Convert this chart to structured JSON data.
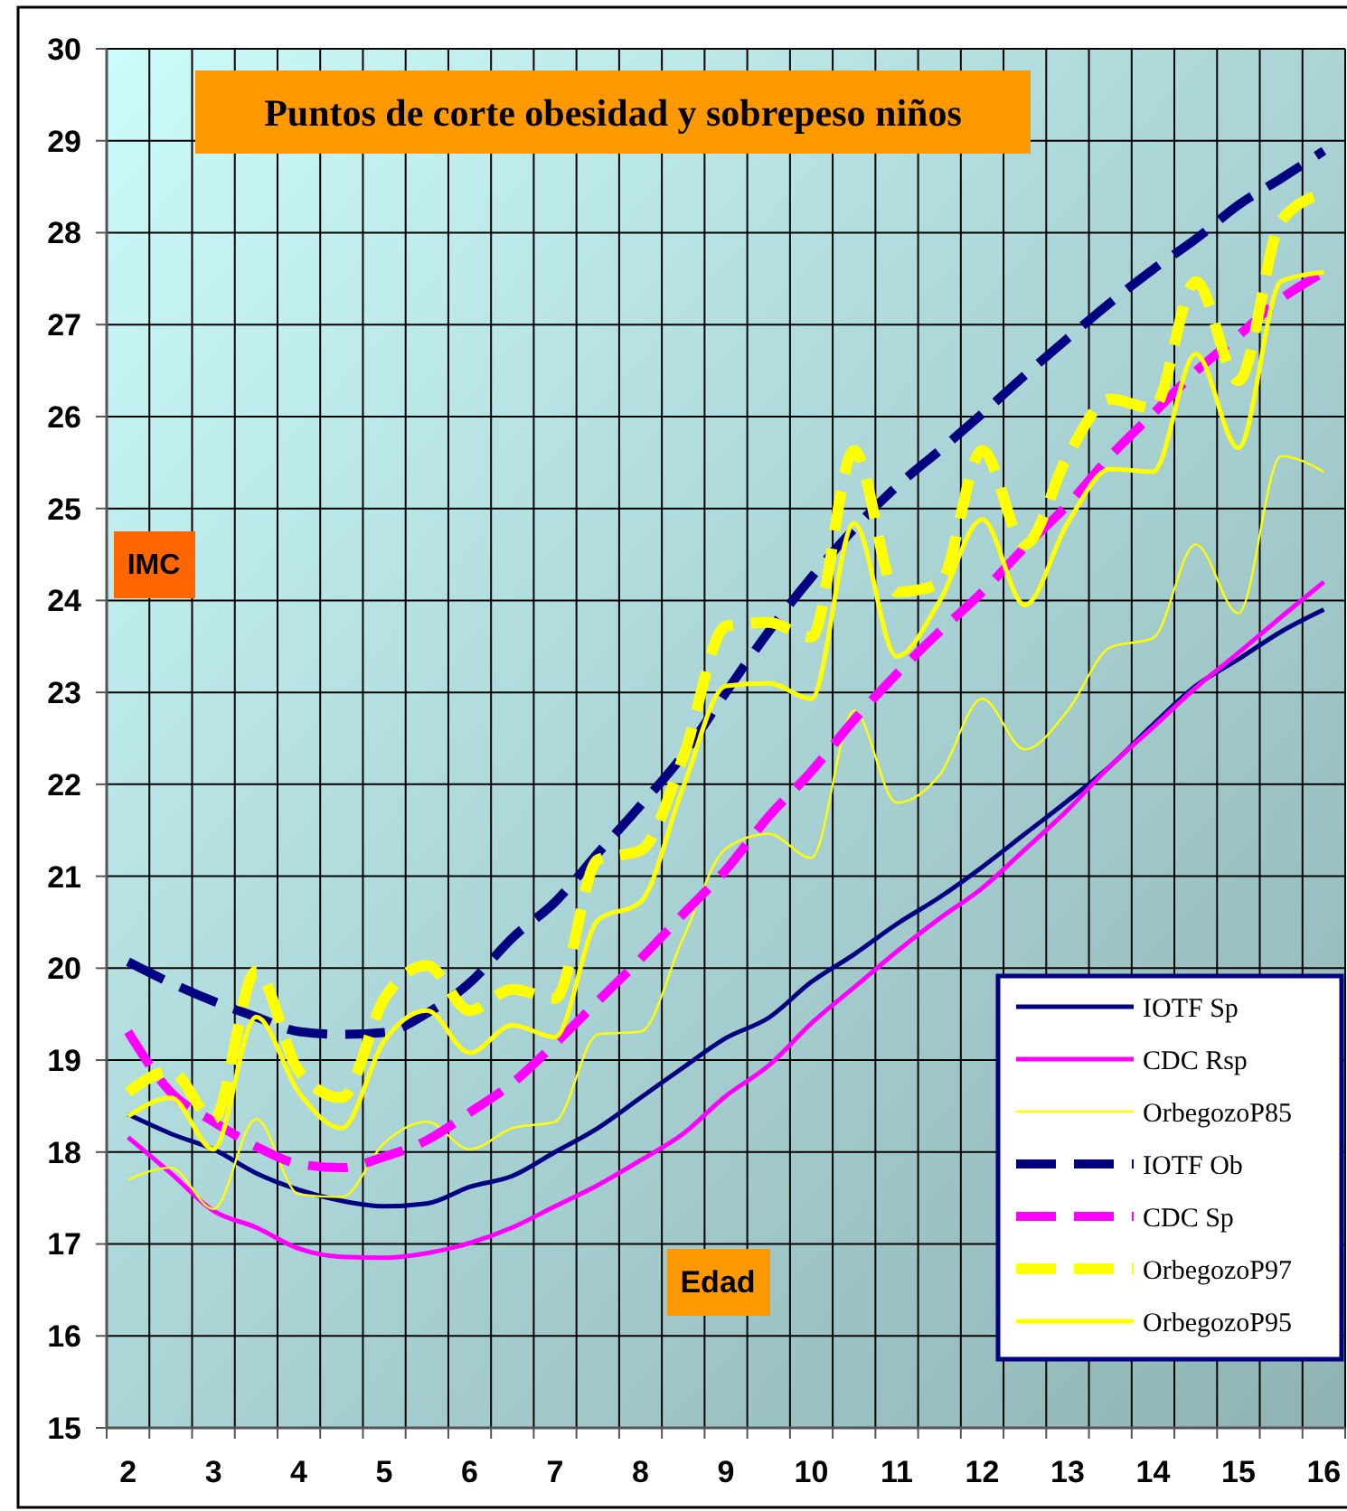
{
  "chart_data": {
    "type": "line",
    "title": "Puntos de corte obesidad y sobrepeso niños",
    "xlabel": "Edad",
    "ylabel": "IMC",
    "categories": [
      "2",
      null,
      "3",
      null,
      "4",
      null,
      "5",
      null,
      "6",
      null,
      "7",
      null,
      "8",
      null,
      "9",
      null,
      "10",
      null,
      "11",
      null,
      "12",
      null,
      "13",
      null,
      "14",
      null,
      "15",
      null,
      "16"
    ],
    "ylim": [
      15,
      30
    ],
    "yticks": [
      15,
      16,
      17,
      18,
      19,
      20,
      21,
      22,
      23,
      24,
      25,
      26,
      27,
      28,
      29,
      30
    ],
    "grid": true,
    "legend": "bottom right",
    "series": [
      {
        "name": "IOTF Sp",
        "color": "#000080",
        "line_style": "solid",
        "values": [
          18.41,
          18.2,
          18.03,
          17.77,
          17.59,
          17.47,
          17.41,
          17.44,
          17.62,
          17.74,
          18.0,
          18.26,
          18.59,
          18.92,
          19.24,
          19.46,
          19.85,
          20.15,
          20.48,
          20.77,
          21.1,
          21.46,
          21.82,
          22.2,
          22.65,
          23.07,
          23.36,
          23.66,
          23.9
        ]
      },
      {
        "name": "CDC Rsp",
        "color": "#ff00ff",
        "line_style": "solid",
        "values": [
          18.16,
          17.77,
          17.36,
          17.18,
          16.95,
          16.86,
          16.85,
          16.9,
          17.01,
          17.18,
          17.41,
          17.64,
          17.91,
          18.2,
          18.61,
          18.94,
          19.4,
          19.79,
          20.18,
          20.54,
          20.87,
          21.29,
          21.72,
          22.2,
          22.62,
          23.05,
          23.43,
          23.82,
          24.2
        ]
      },
      {
        "name": "OrbegozoP85",
        "color": "#ffff00",
        "line_style": "solid",
        "values": [
          17.7,
          17.83,
          17.38,
          18.36,
          17.54,
          17.51,
          18.1,
          18.33,
          18.03,
          18.26,
          18.33,
          19.28,
          19.31,
          20.33,
          21.3,
          21.46,
          21.2,
          22.8,
          21.8,
          22.1,
          22.93,
          22.38,
          22.8,
          23.49,
          23.59,
          24.61,
          23.86,
          25.57,
          25.4
        ]
      },
      {
        "name": "IOTF Ob",
        "color": "#000080",
        "line_style": "dashed",
        "values": [
          20.07,
          19.84,
          19.64,
          19.47,
          19.31,
          19.28,
          19.3,
          19.51,
          19.84,
          20.33,
          20.72,
          21.25,
          21.77,
          22.32,
          23.0,
          23.66,
          24.25,
          24.78,
          25.24,
          25.63,
          26.03,
          26.45,
          26.85,
          27.24,
          27.6,
          27.93,
          28.3,
          28.59,
          28.89
        ]
      },
      {
        "name": "CDC Sp",
        "color": "#ff00ff",
        "line_style": "dashed",
        "values": [
          19.31,
          18.65,
          18.33,
          18.06,
          17.87,
          17.83,
          17.95,
          18.13,
          18.43,
          18.75,
          19.18,
          19.64,
          20.1,
          20.59,
          21.07,
          21.65,
          22.14,
          22.7,
          23.2,
          23.66,
          24.09,
          24.58,
          25.04,
          25.57,
          26.03,
          26.49,
          26.88,
          27.28,
          27.57
        ]
      },
      {
        "name": "OrbegozoP97",
        "color": "#ffff00",
        "line_style": "dashed",
        "values": [
          18.65,
          18.88,
          18.36,
          19.97,
          18.88,
          18.59,
          19.67,
          20.03,
          19.54,
          19.77,
          19.67,
          21.18,
          21.28,
          22.3,
          23.72,
          23.76,
          23.6,
          25.63,
          24.09,
          24.18,
          25.63,
          24.61,
          25.57,
          26.19,
          26.09,
          27.47,
          26.39,
          28.13,
          28.43
        ]
      },
      {
        "name": "OrbegozoP95",
        "color": "#ffff00",
        "line_style": "solid",
        "values": [
          18.39,
          18.59,
          18.03,
          19.47,
          18.65,
          18.26,
          19.21,
          19.54,
          19.08,
          19.38,
          19.25,
          20.52,
          20.72,
          21.97,
          23.07,
          23.1,
          22.93,
          24.84,
          23.39,
          23.99,
          24.88,
          23.95,
          24.84,
          25.43,
          25.4,
          26.68,
          25.66,
          27.47,
          27.57
        ]
      }
    ]
  }
}
